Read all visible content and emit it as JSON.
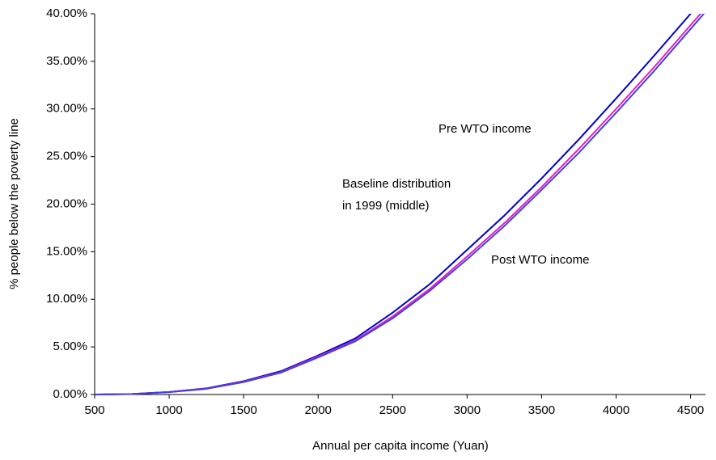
{
  "chart_data": {
    "type": "line",
    "xlabel": "Annual per capita income (Yuan)",
    "ylabel": "% people below the poverty line",
    "x": [
      500,
      750,
      1000,
      1250,
      1500,
      1750,
      2000,
      2250,
      2500,
      2750,
      3000,
      3250,
      3500,
      3750,
      4000,
      4250,
      4500,
      4600
    ],
    "series": [
      {
        "name": "Pre WTO income",
        "color": "#0000cc",
        "values": [
          0,
          0.05,
          0.27,
          0.65,
          1.4,
          2.45,
          4.1,
          5.9,
          8.6,
          11.6,
          15.2,
          18.8,
          22.7,
          26.8,
          31.1,
          35.5,
          40.0,
          41.8
        ]
      },
      {
        "name": "Baseline distribution in 1999 (middle)",
        "color": "#e020c0",
        "values": [
          0,
          0.05,
          0.26,
          0.62,
          1.35,
          2.35,
          4.0,
          5.7,
          8.2,
          11.1,
          14.5,
          18.0,
          21.8,
          25.8,
          30.0,
          34.3,
          38.8,
          40.6
        ]
      },
      {
        "name": "Post WTO income",
        "color": "#4040e0",
        "values": [
          0,
          0.05,
          0.25,
          0.6,
          1.3,
          2.3,
          3.9,
          5.6,
          8.0,
          10.9,
          14.2,
          17.7,
          21.5,
          25.4,
          29.6,
          33.9,
          38.4,
          40.2
        ]
      }
    ],
    "annotations": [
      "Pre WTO income",
      "Baseline distribution",
      "in 1999 (middle)",
      "Post WTO income"
    ],
    "xlim": [
      500,
      4600
    ],
    "xticks": [
      500,
      1000,
      1500,
      2000,
      2500,
      3000,
      3500,
      4000,
      4500
    ],
    "ylim": [
      0,
      40
    ],
    "yticks": [
      {
        "value": 0,
        "label": "0.00%"
      },
      {
        "value": 5,
        "label": "5.00%"
      },
      {
        "value": 10,
        "label": "10.00%"
      },
      {
        "value": 15,
        "label": "15.00%"
      },
      {
        "value": 20,
        "label": "20.00%"
      },
      {
        "value": 25,
        "label": "25.00%"
      },
      {
        "value": 30,
        "label": "30.00%"
      },
      {
        "value": 35,
        "label": "35.00%"
      },
      {
        "value": 40,
        "label": "40.00%"
      }
    ],
    "grid": false
  }
}
